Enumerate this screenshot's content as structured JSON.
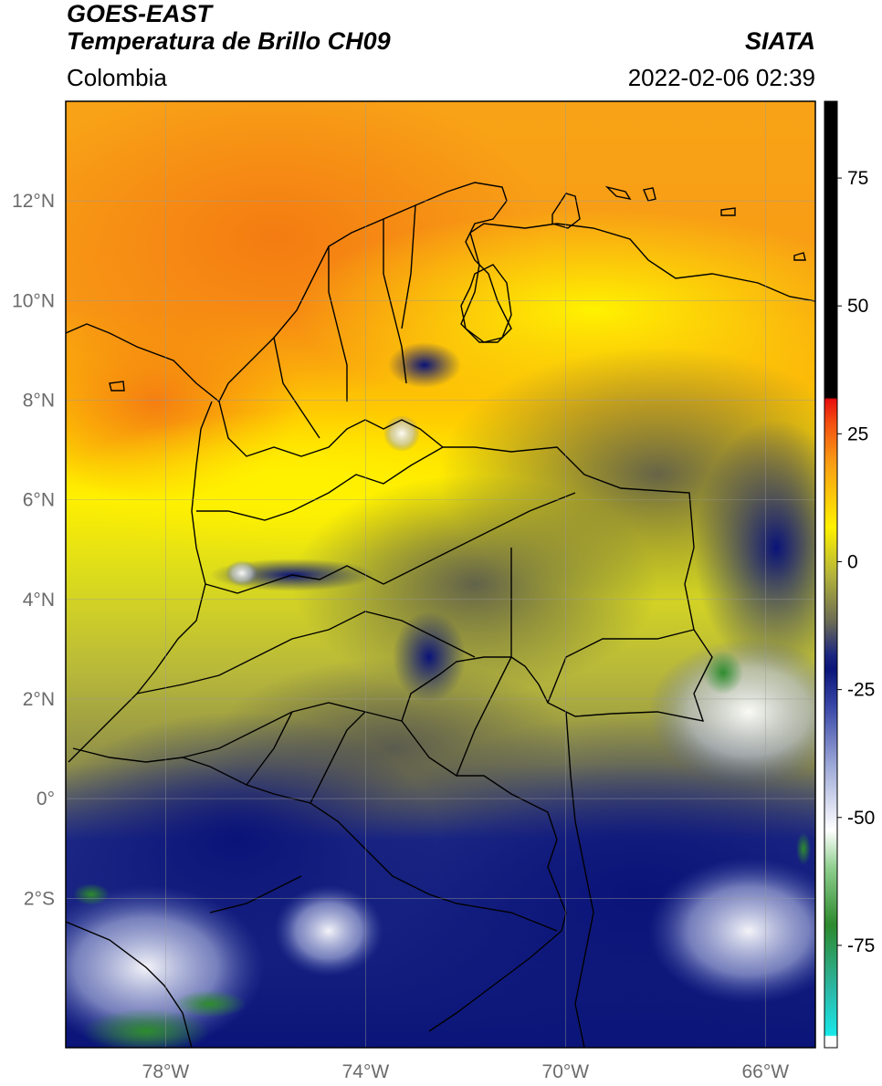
{
  "header": {
    "satellite": "GOES-EAST",
    "product": "Temperatura de Brillo CH09",
    "organization": "SIATA",
    "region": "Colombia",
    "timestamp": "2022-02-06 02:39"
  },
  "map": {
    "lon_range": [
      -80,
      -65
    ],
    "lat_range": [
      -5,
      14
    ],
    "lon_ticks": [
      {
        "value": -78,
        "label": "78°W"
      },
      {
        "value": -74,
        "label": "74°W"
      },
      {
        "value": -70,
        "label": "70°W"
      },
      {
        "value": -66,
        "label": "66°W"
      }
    ],
    "lat_ticks": [
      {
        "value": 12,
        "label": "12°N"
      },
      {
        "value": 10,
        "label": "10°N"
      },
      {
        "value": 8,
        "label": "8°N"
      },
      {
        "value": 6,
        "label": "6°N"
      },
      {
        "value": 4,
        "label": "4°N"
      },
      {
        "value": 2,
        "label": "2°N"
      },
      {
        "value": 0,
        "label": "0°"
      },
      {
        "value": -2,
        "label": "2°S"
      }
    ]
  },
  "colorbar": {
    "range": [
      -95,
      90
    ],
    "ticks": [
      {
        "value": 75,
        "label": "75"
      },
      {
        "value": 50,
        "label": "50"
      },
      {
        "value": 25,
        "label": "25"
      },
      {
        "value": 0,
        "label": "0"
      },
      {
        "value": -25,
        "label": "-25"
      },
      {
        "value": -50,
        "label": "-50"
      },
      {
        "value": -75,
        "label": "-75"
      }
    ]
  },
  "colors": {
    "warm_orange": "#f7891a",
    "yellow": "#ffee00",
    "olive": "#b2b63a",
    "gray": "#6c6c5a",
    "navy": "#0d1a82",
    "white_cloud": "#f4f6fb",
    "green": "#2d8a2d"
  }
}
